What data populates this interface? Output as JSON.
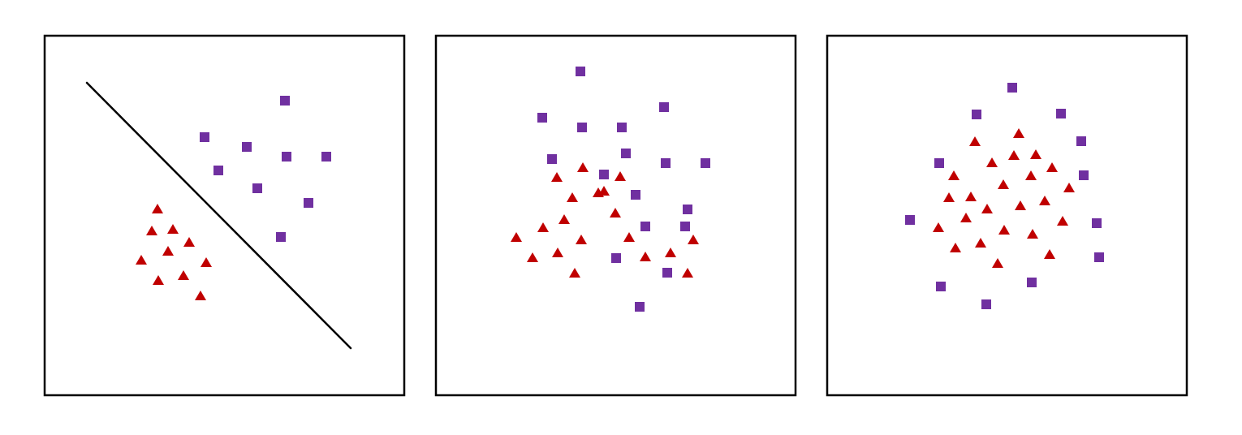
{
  "colors": {
    "class_a": "#c00000",
    "class_b": "#7030a0",
    "background": "#ffffff",
    "border": "#000000"
  },
  "legend": {
    "class_a_marker": "triangle",
    "class_b_marker": "square"
  },
  "panels": [
    {
      "has_separator": true,
      "class_a": [
        [
          139,
          213
        ],
        [
          132,
          240
        ],
        [
          158,
          238
        ],
        [
          178,
          254
        ],
        [
          119,
          276
        ],
        [
          152,
          265
        ],
        [
          199,
          279
        ],
        [
          140,
          301
        ],
        [
          171,
          295
        ],
        [
          192,
          320
        ]
      ],
      "class_b": [
        [
          296,
          80
        ],
        [
          197,
          125
        ],
        [
          249,
          137
        ],
        [
          298,
          149
        ],
        [
          347,
          149
        ],
        [
          214,
          166
        ],
        [
          262,
          188
        ],
        [
          325,
          206
        ],
        [
          291,
          248
        ]
      ],
      "separator": [
        [
          52,
          58
        ],
        [
          377,
          385
        ]
      ]
    },
    {
      "has_separator": false,
      "class_a": [
        [
          207,
          191
        ],
        [
          149,
          174
        ],
        [
          181,
          162
        ],
        [
          227,
          173
        ],
        [
          168,
          199
        ],
        [
          200,
          193
        ],
        [
          221,
          218
        ],
        [
          158,
          226
        ],
        [
          132,
          236
        ],
        [
          99,
          248
        ],
        [
          179,
          251
        ],
        [
          238,
          248
        ],
        [
          119,
          273
        ],
        [
          150,
          267
        ],
        [
          258,
          272
        ],
        [
          289,
          267
        ],
        [
          317,
          251
        ],
        [
          171,
          292
        ],
        [
          310,
          292
        ]
      ],
      "class_b": [
        [
          178,
          44
        ],
        [
          131,
          101
        ],
        [
          180,
          113
        ],
        [
          229,
          113
        ],
        [
          281,
          88
        ],
        [
          143,
          152
        ],
        [
          234,
          145
        ],
        [
          207,
          171
        ],
        [
          283,
          157
        ],
        [
          332,
          157
        ],
        [
          246,
          196
        ],
        [
          310,
          214
        ],
        [
          258,
          235
        ],
        [
          307,
          235
        ],
        [
          222,
          274
        ],
        [
          285,
          292
        ],
        [
          251,
          334
        ]
      ],
      "separator": []
    },
    {
      "has_separator": false,
      "class_a": [
        [
          236,
          120
        ],
        [
          182,
          130
        ],
        [
          203,
          156
        ],
        [
          230,
          147
        ],
        [
          257,
          146
        ],
        [
          277,
          162
        ],
        [
          156,
          172
        ],
        [
          251,
          172
        ],
        [
          150,
          199
        ],
        [
          177,
          198
        ],
        [
          217,
          183
        ],
        [
          298,
          187
        ],
        [
          197,
          213
        ],
        [
          238,
          209
        ],
        [
          268,
          203
        ],
        [
          171,
          224
        ],
        [
          290,
          228
        ],
        [
          137,
          236
        ],
        [
          218,
          239
        ],
        [
          253,
          244
        ],
        [
          158,
          261
        ],
        [
          189,
          255
        ],
        [
          274,
          269
        ],
        [
          210,
          280
        ]
      ],
      "class_b": [
        [
          228,
          64
        ],
        [
          184,
          97
        ],
        [
          288,
          96
        ],
        [
          313,
          130
        ],
        [
          138,
          157
        ],
        [
          316,
          172
        ],
        [
          102,
          227
        ],
        [
          332,
          231
        ],
        [
          335,
          273
        ],
        [
          140,
          309
        ],
        [
          252,
          304
        ],
        [
          196,
          331
        ]
      ],
      "separator": []
    }
  ]
}
